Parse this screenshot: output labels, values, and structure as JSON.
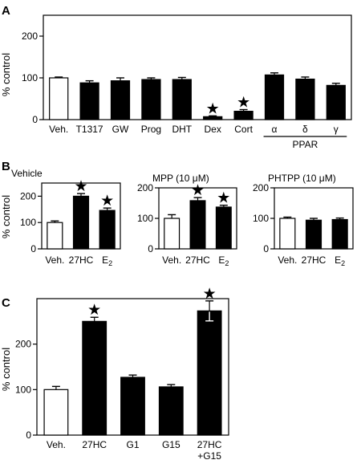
{
  "chart_data": [
    {
      "panel": "A",
      "type": "bar",
      "ylabel": "% control",
      "ylim": [
        0,
        250
      ],
      "yticks": [
        0,
        100,
        200
      ],
      "categories": [
        "Veh.",
        "T1317",
        "GW",
        "Prog",
        "DHT",
        "Dex",
        "Cort",
        "α",
        "δ",
        "γ"
      ],
      "values": [
        100,
        88,
        93,
        96,
        96,
        7,
        20,
        107,
        97,
        82
      ],
      "errors": [
        2,
        5,
        7,
        4,
        5,
        2,
        4,
        5,
        5,
        5
      ],
      "fill": [
        "white",
        "black",
        "black",
        "black",
        "black",
        "black",
        "black",
        "black",
        "black",
        "black"
      ],
      "significant": [
        false,
        false,
        false,
        false,
        false,
        true,
        true,
        false,
        false,
        false
      ],
      "group_label": {
        "text": "PPAR",
        "categories": [
          "α",
          "δ",
          "γ"
        ]
      }
    },
    {
      "panel": "B",
      "type": "bar",
      "ylabel": "% control",
      "subpanels": [
        {
          "title": "Vehicle",
          "ylim": [
            0,
            250
          ],
          "yticks": [
            0,
            100,
            200
          ],
          "categories": [
            "Veh.",
            "27HC",
            "E2"
          ],
          "values": [
            100,
            200,
            146
          ],
          "errors": [
            6,
            10,
            9
          ],
          "fill": [
            "white",
            "black",
            "black"
          ],
          "significant": [
            false,
            true,
            true
          ]
        },
        {
          "title": "MPP (10 μM)",
          "ylim": [
            0,
            200
          ],
          "yticks": [
            0,
            100,
            200
          ],
          "categories": [
            "Veh.",
            "27HC",
            "E2"
          ],
          "values": [
            100,
            158,
            137
          ],
          "errors": [
            12,
            10,
            6
          ],
          "fill": [
            "white",
            "black",
            "black"
          ],
          "significant": [
            false,
            true,
            true
          ]
        },
        {
          "title": "PHTPP (10 μM)",
          "ylim": [
            0,
            200
          ],
          "yticks": [
            0,
            100,
            200
          ],
          "categories": [
            "Veh.",
            "27HC",
            "E2"
          ],
          "values": [
            100,
            94,
            96
          ],
          "errors": [
            4,
            6,
            5
          ],
          "fill": [
            "white",
            "black",
            "black"
          ],
          "significant": [
            false,
            false,
            false
          ]
        }
      ]
    },
    {
      "panel": "C",
      "type": "bar",
      "ylabel": "% control",
      "ylim": [
        0,
        300
      ],
      "yticks": [
        0,
        100,
        200
      ],
      "categories": [
        "Veh.",
        "27HC",
        "G1",
        "G15",
        "27HC\n+G15"
      ],
      "values": [
        100,
        250,
        127,
        106,
        273
      ],
      "errors": [
        7,
        9,
        5,
        5,
        22
      ],
      "fill": [
        "white",
        "black",
        "black",
        "black",
        "black"
      ],
      "significant": [
        false,
        true,
        false,
        false,
        true
      ]
    }
  ]
}
